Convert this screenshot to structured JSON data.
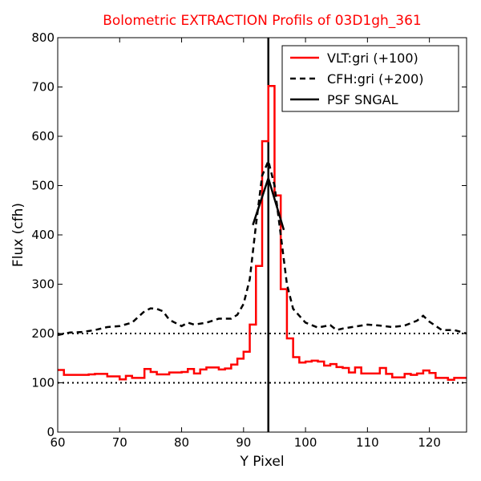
{
  "chart_data": {
    "type": "line",
    "title": "Bolometric EXTRACTION Profils of 03D1gh_361",
    "xlabel": "Y Pixel",
    "ylabel": "Flux (cfh)",
    "xlim": [
      60,
      126
    ],
    "ylim": [
      0,
      800
    ],
    "xticks": [
      60,
      70,
      80,
      90,
      100,
      110,
      120
    ],
    "yticks": [
      0,
      100,
      200,
      300,
      400,
      500,
      600,
      700,
      800
    ],
    "grid": false,
    "legend_position": "top-right",
    "reference_lines": [
      {
        "y": 200,
        "style": "dotted"
      },
      {
        "y": 100,
        "style": "dotted"
      },
      {
        "x": 94,
        "style": "solid"
      }
    ],
    "series": [
      {
        "name": "VLT:gri (+100)",
        "color": "#ff0000",
        "style": "steps",
        "x": [
          60,
          61,
          62,
          63,
          64,
          65,
          66,
          67,
          68,
          69,
          70,
          71,
          72,
          73,
          74,
          75,
          76,
          77,
          78,
          79,
          80,
          81,
          82,
          83,
          84,
          85,
          86,
          87,
          88,
          89,
          90,
          91,
          92,
          93,
          94,
          95,
          96,
          97,
          98,
          99,
          100,
          101,
          102,
          103,
          104,
          105,
          106,
          107,
          108,
          109,
          110,
          111,
          112,
          113,
          114,
          115,
          116,
          117,
          118,
          119,
          120,
          121,
          122,
          123,
          124,
          125
        ],
        "y": [
          126,
          116,
          116,
          116,
          116,
          117,
          118,
          118,
          113,
          113,
          107,
          114,
          110,
          110,
          128,
          122,
          117,
          117,
          121,
          121,
          122,
          128,
          119,
          127,
          131,
          131,
          127,
          129,
          137,
          149,
          163,
          218,
          337,
          590,
          702,
          480,
          290,
          190,
          152,
          141,
          143,
          145,
          143,
          135,
          138,
          132,
          130,
          121,
          131,
          119,
          119,
          119,
          130,
          118,
          111,
          111,
          118,
          116,
          119,
          125,
          120,
          110,
          110,
          106,
          110,
          110
        ]
      },
      {
        "name": "CFH:gri (+200)",
        "color": "#000000",
        "style": "dashed",
        "x": [
          60,
          62,
          64,
          66,
          68,
          70,
          72,
          74,
          75,
          76,
          77,
          78,
          80,
          81,
          82,
          84,
          86,
          88,
          89,
          90,
          91,
          92,
          93,
          94,
          95,
          96,
          97,
          98,
          100,
          102,
          104,
          105,
          106,
          108,
          110,
          112,
          114,
          116,
          118,
          119,
          120,
          122,
          124,
          126
        ],
        "y": [
          197,
          202,
          203,
          207,
          213,
          215,
          222,
          245,
          251,
          250,
          245,
          228,
          215,
          222,
          218,
          222,
          230,
          230,
          238,
          260,
          310,
          420,
          520,
          550,
          500,
          400,
          300,
          250,
          222,
          212,
          217,
          207,
          210,
          214,
          218,
          216,
          213,
          216,
          226,
          236,
          224,
          207,
          207,
          200
        ]
      },
      {
        "name": "PSF SNGAL",
        "color": "#000000",
        "style": "solid",
        "x": [
          91.5,
          94,
          96.5
        ],
        "y": [
          420,
          515,
          410
        ]
      }
    ]
  }
}
